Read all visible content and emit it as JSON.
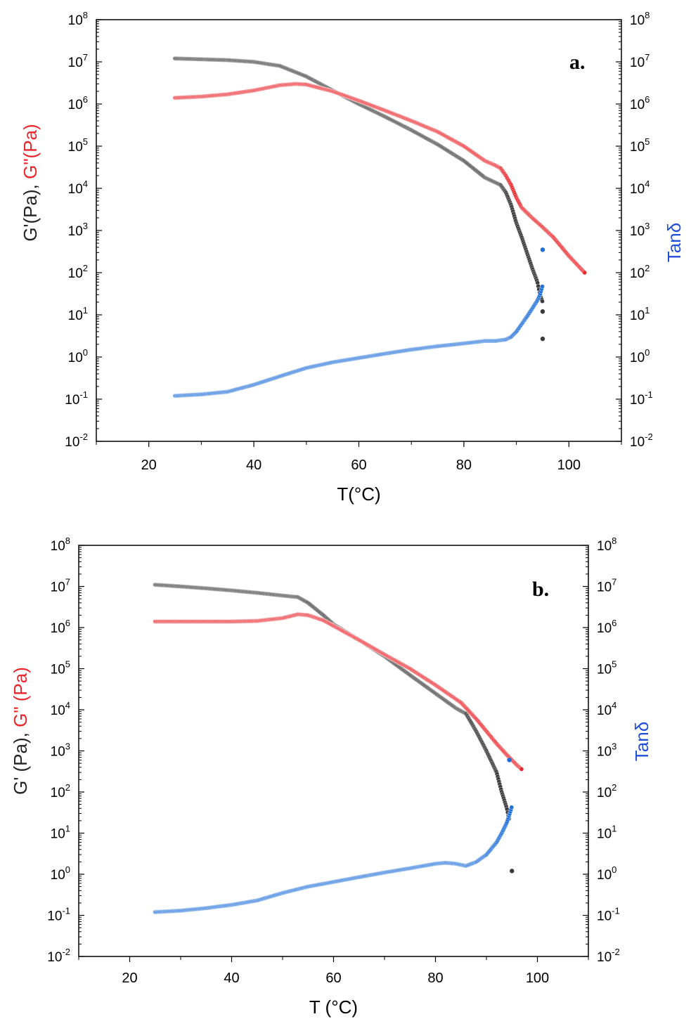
{
  "chart_data": [
    {
      "type": "scatter",
      "panel_label": "a.",
      "xlabel": "T(°C)",
      "ylabel_parts": [
        {
          "text": "G'(Pa), ",
          "color": "#222222"
        },
        {
          "text": "G\"(Pa)",
          "color": "#e8262c"
        }
      ],
      "ylabel_right": "Tanδ",
      "ylabel_right_color": "#1f4fd8",
      "xlim": [
        10,
        110
      ],
      "ylim": [
        0.01,
        100000000
      ],
      "yscale": "log",
      "xticks": [
        "20",
        "40",
        "60",
        "80",
        "100"
      ],
      "yticks": [
        {
          "base": "10",
          "exp": "8"
        },
        {
          "base": "10",
          "exp": "7"
        },
        {
          "base": "10",
          "exp": "6"
        },
        {
          "base": "10",
          "exp": "5"
        },
        {
          "base": "10",
          "exp": "4"
        },
        {
          "base": "10",
          "exp": "3"
        },
        {
          "base": "10",
          "exp": "2"
        },
        {
          "base": "10",
          "exp": "1"
        },
        {
          "base": "10",
          "exp": "0"
        },
        {
          "base": "10",
          "exp": "-1"
        },
        {
          "base": "10",
          "exp": "-2"
        }
      ],
      "series": [
        {
          "color": "#3a3a3a",
          "x": [
            25,
            30,
            35,
            40,
            45,
            50,
            55,
            60,
            65,
            70,
            75,
            80,
            84,
            87,
            88,
            89,
            90,
            91,
            92,
            93,
            94,
            94.5,
            95
          ],
          "y": [
            12000000,
            11500000,
            11000000,
            10000000,
            8000000,
            4500000,
            2100000,
            1000000,
            500000,
            240000,
            110000,
            45000,
            18000,
            12000,
            8000,
            4000,
            1500,
            700,
            300,
            130,
            60,
            30,
            20
          ]
        },
        {
          "color": "#e8262c",
          "x": [
            25,
            30,
            35,
            40,
            45,
            48,
            50,
            55,
            60,
            65,
            70,
            75,
            80,
            84,
            86,
            87,
            88,
            89,
            90,
            91,
            93,
            95,
            97,
            100,
            103
          ],
          "y": [
            1400000,
            1500000,
            1700000,
            2100000,
            2800000,
            3000000,
            2900000,
            2000000,
            1200000,
            700000,
            400000,
            220000,
            100000,
            45000,
            35000,
            30000,
            20000,
            12000,
            6000,
            3500,
            2000,
            1200,
            700,
            250,
            100
          ]
        },
        {
          "color": "#1f6fd8",
          "x": [
            25,
            30,
            35,
            40,
            45,
            50,
            55,
            60,
            65,
            70,
            75,
            80,
            84,
            86,
            88,
            89,
            90,
            91,
            92,
            93,
            94,
            94.5,
            95,
            95
          ],
          "y": [
            0.12,
            0.13,
            0.15,
            0.22,
            0.35,
            0.55,
            0.75,
            0.95,
            1.2,
            1.5,
            1.8,
            2.1,
            2.4,
            2.4,
            2.6,
            3,
            4,
            6,
            9,
            14,
            22,
            30,
            50,
            80
          ]
        }
      ],
      "outliers": [
        {
          "x": 95,
          "y": 2.7,
          "color": "#3a3a3a"
        },
        {
          "x": 95,
          "y": 12,
          "color": "#3a3a3a"
        },
        {
          "x": 95,
          "y": 350,
          "color": "#1f6fd8"
        }
      ]
    },
    {
      "type": "scatter",
      "panel_label": "b.",
      "xlabel": "T (°C)",
      "ylabel_parts": [
        {
          "text": "G' (Pa), ",
          "color": "#222222"
        },
        {
          "text": "G\" (Pa)",
          "color": "#e8262c"
        }
      ],
      "ylabel_right": "Tanδ",
      "ylabel_right_color": "#1f4fd8",
      "xlim": [
        10,
        110
      ],
      "ylim": [
        0.01,
        100000000
      ],
      "yscale": "log",
      "xticks": [
        "20",
        "40",
        "60",
        "80",
        "100"
      ],
      "yticks": [
        {
          "base": "10",
          "exp": "8"
        },
        {
          "base": "10",
          "exp": "7"
        },
        {
          "base": "10",
          "exp": "6"
        },
        {
          "base": "10",
          "exp": "5"
        },
        {
          "base": "10",
          "exp": "4"
        },
        {
          "base": "10",
          "exp": "3"
        },
        {
          "base": "10",
          "exp": "2"
        },
        {
          "base": "10",
          "exp": "1"
        },
        {
          "base": "10",
          "exp": "0"
        },
        {
          "base": "10",
          "exp": "-1"
        },
        {
          "base": "10",
          "exp": "-2"
        }
      ],
      "series": [
        {
          "color": "#3a3a3a",
          "x": [
            25,
            30,
            35,
            40,
            45,
            50,
            53,
            55,
            58,
            60,
            65,
            70,
            75,
            80,
            84,
            86,
            88,
            90,
            92,
            93,
            94,
            94.5
          ],
          "y": [
            11000000,
            10000000,
            9000000,
            8000000,
            7000000,
            6000000,
            5500000,
            4000000,
            2000000,
            1200000,
            500000,
            200000,
            70000,
            25000,
            11000,
            8000,
            3000,
            1000,
            300,
            100,
            40,
            20
          ]
        },
        {
          "color": "#e8262c",
          "x": [
            25,
            30,
            35,
            40,
            45,
            50,
            53,
            55,
            58,
            60,
            65,
            70,
            75,
            80,
            85,
            88,
            90,
            92,
            94,
            95,
            96,
            97
          ],
          "y": [
            1400000,
            1400000,
            1400000,
            1400000,
            1450000,
            1700000,
            2100000,
            2000000,
            1500000,
            1100000,
            500000,
            220000,
            100000,
            40000,
            15000,
            6000,
            3000,
            1500,
            800,
            600,
            450,
            350
          ]
        },
        {
          "color": "#1f6fd8",
          "x": [
            25,
            30,
            35,
            40,
            45,
            50,
            55,
            60,
            65,
            70,
            75,
            80,
            82,
            84,
            86,
            88,
            90,
            92,
            93,
            94,
            94.5,
            95
          ],
          "y": [
            0.12,
            0.13,
            0.15,
            0.18,
            0.23,
            0.35,
            0.5,
            0.65,
            0.85,
            1.1,
            1.4,
            1.8,
            1.9,
            1.8,
            1.6,
            2,
            3,
            6,
            10,
            18,
            28,
            45
          ]
        }
      ],
      "outliers": [
        {
          "x": 95,
          "y": 1.2,
          "color": "#3a3a3a"
        },
        {
          "x": 94.5,
          "y": 600,
          "color": "#1f6fd8"
        }
      ]
    }
  ]
}
